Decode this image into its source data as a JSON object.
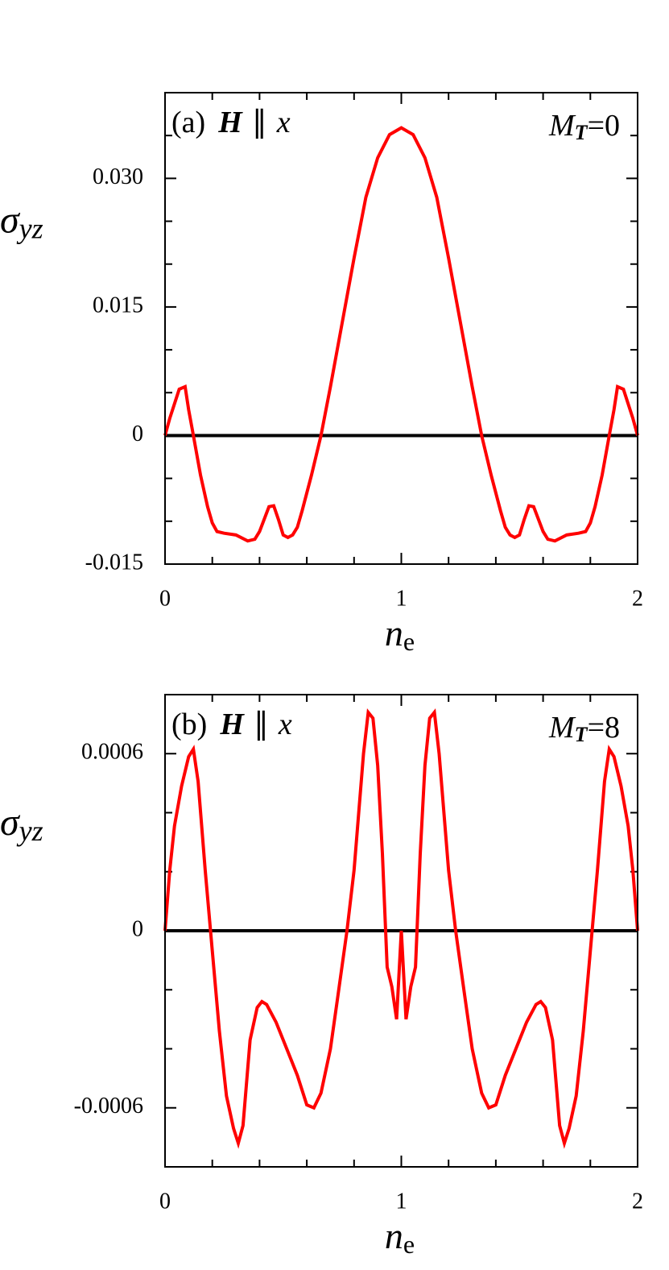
{
  "chart_data": [
    {
      "type": "line",
      "panel": "(a)",
      "field": "H",
      "parallel": "∥",
      "direction": "x",
      "moment_symbol": "M",
      "moment_subscript": "T",
      "moment_value": "=0",
      "ylabel": "σ",
      "ylabel_subscript": "yz",
      "xlabel": "n",
      "xlabel_subscript": "e",
      "x": [
        0,
        0.02,
        0.06,
        0.085,
        0.1,
        0.12,
        0.15,
        0.18,
        0.2,
        0.22,
        0.25,
        0.3,
        0.35,
        0.38,
        0.4,
        0.44,
        0.46,
        0.48,
        0.5,
        0.52,
        0.54,
        0.56,
        0.58,
        0.62,
        0.66,
        0.7,
        0.75,
        0.8,
        0.85,
        0.9,
        0.95,
        1.0,
        1.05,
        1.1,
        1.15,
        1.2,
        1.25,
        1.3,
        1.34,
        1.38,
        1.42,
        1.44,
        1.46,
        1.48,
        1.5,
        1.52,
        1.54,
        1.56,
        1.6,
        1.62,
        1.65,
        1.7,
        1.75,
        1.78,
        1.8,
        1.82,
        1.85,
        1.88,
        1.9,
        1.915,
        1.94,
        1.98,
        2.0
      ],
      "values": [
        0,
        0.002,
        0.0054,
        0.0057,
        0.003,
        0,
        -0.0046,
        -0.0083,
        -0.0102,
        -0.0112,
        -0.0114,
        -0.0116,
        -0.0123,
        -0.0121,
        -0.0112,
        -0.0083,
        -0.0082,
        -0.0098,
        -0.0116,
        -0.0119,
        -0.0116,
        -0.0107,
        -0.0088,
        -0.0046,
        0,
        0.0057,
        0.0132,
        0.0207,
        0.0278,
        0.0324,
        0.0351,
        0.0359,
        0.0351,
        0.0324,
        0.0278,
        0.0207,
        0.0132,
        0.0057,
        0,
        -0.0046,
        -0.0088,
        -0.0107,
        -0.0116,
        -0.0119,
        -0.0116,
        -0.0098,
        -0.0082,
        -0.0083,
        -0.0112,
        -0.0121,
        -0.0123,
        -0.0116,
        -0.0114,
        -0.0112,
        -0.0102,
        -0.0083,
        -0.0046,
        0,
        0.003,
        0.0057,
        0.0054,
        0.002,
        0
      ],
      "color": "#ff0000",
      "hline": 0,
      "hline_color": "#000000",
      "xlim": [
        0,
        2
      ],
      "xticks": [
        0,
        1,
        2
      ],
      "xticks_minor": [
        0.2,
        0.4,
        0.6,
        0.8,
        1.2,
        1.4,
        1.6,
        1.8
      ],
      "ylim": [
        -0.015,
        0.04
      ],
      "yticks": [
        -0.015,
        0,
        0.015,
        {
          "value": 0.03,
          "label": "0.030"
        }
      ],
      "yticks_minor": [
        -0.01,
        -0.005,
        0.005,
        0.01,
        0.02,
        0.025,
        0.035
      ]
    },
    {
      "type": "line",
      "panel": "(b)",
      "field": "H",
      "parallel": "∥",
      "direction": "x",
      "moment_symbol": "M",
      "moment_subscript": "T",
      "moment_value": "=8",
      "ylabel": "σ",
      "ylabel_subscript": "yz",
      "xlabel": "n",
      "xlabel_subscript": "e",
      "x": [
        0,
        0.02,
        0.04,
        0.07,
        0.1,
        0.12,
        0.14,
        0.17,
        0.2,
        0.23,
        0.26,
        0.29,
        0.31,
        0.33,
        0.36,
        0.39,
        0.41,
        0.43,
        0.47,
        0.52,
        0.56,
        0.6,
        0.63,
        0.66,
        0.7,
        0.73,
        0.77,
        0.8,
        0.84,
        0.86,
        0.88,
        0.9,
        0.92,
        0.94,
        0.96,
        0.98,
        1.0,
        1.02,
        1.04,
        1.06,
        1.08,
        1.1,
        1.12,
        1.14,
        1.16,
        1.2,
        1.23,
        1.27,
        1.3,
        1.34,
        1.37,
        1.4,
        1.44,
        1.48,
        1.53,
        1.57,
        1.59,
        1.61,
        1.64,
        1.67,
        1.69,
        1.71,
        1.74,
        1.77,
        1.8,
        1.83,
        1.86,
        1.88,
        1.9,
        1.93,
        1.96,
        1.98,
        2.0
      ],
      "values": [
        0,
        0.000205,
        0.000355,
        0.00049,
        0.00059,
        0.000615,
        0.000506,
        0.000205,
        -6.8e-05,
        -0.00034,
        -0.00056,
        -0.00067,
        -0.00072,
        -0.00066,
        -0.00037,
        -0.00026,
        -0.00024,
        -0.00025,
        -0.00031,
        -0.00041,
        -0.00049,
        -0.00059,
        -0.0006,
        -0.00055,
        -0.0004,
        -0.00023,
        0,
        0.000205,
        0.0006,
        0.00074,
        0.00072,
        0.00056,
        0.00026,
        -0.000123,
        -0.00019,
        -0.0003,
        0,
        -0.0003,
        -0.00019,
        -0.000123,
        0.00026,
        0.00056,
        0.00072,
        0.00074,
        0.0006,
        0.000205,
        0,
        -0.00023,
        -0.0004,
        -0.00055,
        -0.0006,
        -0.00059,
        -0.00049,
        -0.00041,
        -0.00031,
        -0.00025,
        -0.00024,
        -0.00026,
        -0.00037,
        -0.00066,
        -0.00072,
        -0.00067,
        -0.00056,
        -0.00034,
        -6.8e-05,
        0.000205,
        0.000506,
        0.000615,
        0.00059,
        0.00049,
        0.000355,
        0.000205,
        0
      ],
      "color": "#ff0000",
      "hline": 0,
      "hline_color": "#000000",
      "xlim": [
        0,
        2
      ],
      "xticks": [
        0,
        1,
        2
      ],
      "xticks_minor": [
        0.2,
        0.4,
        0.6,
        0.8,
        1.2,
        1.4,
        1.6,
        1.8
      ],
      "ylim": [
        -0.0008,
        0.0008
      ],
      "yticks": [
        -0.0006,
        0,
        0.0006
      ],
      "yticks_minor": [
        -0.0004,
        -0.0002,
        0.0002,
        0.0004
      ]
    }
  ]
}
